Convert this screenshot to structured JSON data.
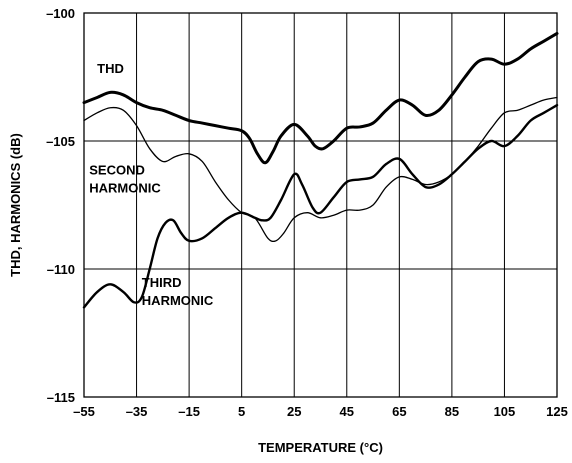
{
  "chart_data": {
    "type": "line",
    "xlabel": "TEMPERATURE (°C)",
    "ylabel": "THD, HARMONICS (dB)",
    "xlim": [
      -55,
      125
    ],
    "ylim": [
      -115,
      -100
    ],
    "grid": true,
    "x_ticks": [
      -55,
      -35,
      -15,
      5,
      25,
      45,
      65,
      85,
      105,
      125
    ],
    "y_ticks": [
      -100,
      -105,
      -110,
      -115
    ],
    "x_tick_labels": [
      "–55",
      "–35",
      "–15",
      "5",
      "25",
      "45",
      "65",
      "85",
      "105",
      "125"
    ],
    "y_tick_labels": [
      "–100",
      "–105",
      "–110",
      "–115"
    ],
    "series": [
      {
        "name": "THD",
        "points": [
          [
            -55,
            -103.5
          ],
          [
            -50,
            -103.3
          ],
          [
            -45,
            -103.1
          ],
          [
            -40,
            -103.2
          ],
          [
            -35,
            -103.5
          ],
          [
            -30,
            -103.7
          ],
          [
            -25,
            -103.8
          ],
          [
            -20,
            -104.0
          ],
          [
            -15,
            -104.2
          ],
          [
            -10,
            -104.3
          ],
          [
            -5,
            -104.4
          ],
          [
            0,
            -104.5
          ],
          [
            5,
            -104.6
          ],
          [
            8,
            -104.9
          ],
          [
            11,
            -105.5
          ],
          [
            14,
            -105.85
          ],
          [
            17,
            -105.4
          ],
          [
            20,
            -104.8
          ],
          [
            25,
            -104.35
          ],
          [
            30,
            -104.8
          ],
          [
            33,
            -105.2
          ],
          [
            36,
            -105.3
          ],
          [
            40,
            -105.0
          ],
          [
            45,
            -104.5
          ],
          [
            50,
            -104.45
          ],
          [
            55,
            -104.3
          ],
          [
            60,
            -103.8
          ],
          [
            65,
            -103.4
          ],
          [
            70,
            -103.6
          ],
          [
            75,
            -104.0
          ],
          [
            80,
            -103.8
          ],
          [
            85,
            -103.2
          ],
          [
            90,
            -102.5
          ],
          [
            95,
            -101.9
          ],
          [
            100,
            -101.8
          ],
          [
            105,
            -102.0
          ],
          [
            110,
            -101.8
          ],
          [
            115,
            -101.4
          ],
          [
            120,
            -101.1
          ],
          [
            125,
            -100.8
          ]
        ],
        "stroke_width": 3
      },
      {
        "name": "SECOND HARMONIC",
        "points": [
          [
            -55,
            -104.2
          ],
          [
            -50,
            -103.9
          ],
          [
            -45,
            -103.7
          ],
          [
            -40,
            -103.8
          ],
          [
            -35,
            -104.4
          ],
          [
            -30,
            -105.3
          ],
          [
            -25,
            -105.8
          ],
          [
            -20,
            -105.6
          ],
          [
            -15,
            -105.5
          ],
          [
            -10,
            -105.8
          ],
          [
            -5,
            -106.6
          ],
          [
            0,
            -107.3
          ],
          [
            5,
            -107.8
          ],
          [
            10,
            -108.0
          ],
          [
            15,
            -108.8
          ],
          [
            18,
            -108.9
          ],
          [
            21,
            -108.6
          ],
          [
            25,
            -108.0
          ],
          [
            30,
            -107.8
          ],
          [
            35,
            -108.0
          ],
          [
            40,
            -107.9
          ],
          [
            45,
            -107.7
          ],
          [
            50,
            -107.7
          ],
          [
            55,
            -107.5
          ],
          [
            60,
            -106.8
          ],
          [
            65,
            -106.4
          ],
          [
            70,
            -106.5
          ],
          [
            75,
            -106.7
          ],
          [
            80,
            -106.6
          ],
          [
            85,
            -106.3
          ],
          [
            90,
            -105.8
          ],
          [
            95,
            -105.2
          ],
          [
            100,
            -104.5
          ],
          [
            105,
            -103.9
          ],
          [
            110,
            -103.8
          ],
          [
            115,
            -103.6
          ],
          [
            120,
            -103.4
          ],
          [
            125,
            -103.3
          ]
        ],
        "stroke_width": 1.3
      },
      {
        "name": "THIRD HARMONIC",
        "points": [
          [
            -55,
            -111.5
          ],
          [
            -50,
            -110.9
          ],
          [
            -45,
            -110.6
          ],
          [
            -40,
            -110.9
          ],
          [
            -36,
            -111.3
          ],
          [
            -33,
            -111.1
          ],
          [
            -30,
            -110.0
          ],
          [
            -27,
            -108.8
          ],
          [
            -24,
            -108.2
          ],
          [
            -21,
            -108.1
          ],
          [
            -18,
            -108.6
          ],
          [
            -15,
            -108.9
          ],
          [
            -10,
            -108.8
          ],
          [
            -5,
            -108.4
          ],
          [
            0,
            -108.0
          ],
          [
            5,
            -107.8
          ],
          [
            10,
            -108.0
          ],
          [
            13,
            -108.1
          ],
          [
            16,
            -108.0
          ],
          [
            20,
            -107.3
          ],
          [
            25,
            -106.3
          ],
          [
            28,
            -106.7
          ],
          [
            32,
            -107.6
          ],
          [
            35,
            -107.8
          ],
          [
            40,
            -107.2
          ],
          [
            45,
            -106.6
          ],
          [
            50,
            -106.5
          ],
          [
            55,
            -106.4
          ],
          [
            60,
            -105.9
          ],
          [
            65,
            -105.7
          ],
          [
            70,
            -106.3
          ],
          [
            75,
            -106.8
          ],
          [
            80,
            -106.7
          ],
          [
            85,
            -106.3
          ],
          [
            90,
            -105.8
          ],
          [
            95,
            -105.3
          ],
          [
            100,
            -105.0
          ],
          [
            105,
            -105.2
          ],
          [
            110,
            -104.8
          ],
          [
            115,
            -104.2
          ],
          [
            120,
            -103.9
          ],
          [
            125,
            -103.6
          ]
        ],
        "stroke_width": 2.4
      }
    ],
    "annotations": [
      {
        "id": "thd",
        "lines": [
          "THD"
        ],
        "at": [
          -50,
          -102.35
        ]
      },
      {
        "id": "second",
        "lines": [
          "SECOND",
          "HARMONIC"
        ],
        "at": [
          -53,
          -106.3
        ]
      },
      {
        "id": "third",
        "lines": [
          "THIRD",
          "HARMONIC"
        ],
        "at": [
          -33,
          -110.7
        ]
      }
    ]
  }
}
